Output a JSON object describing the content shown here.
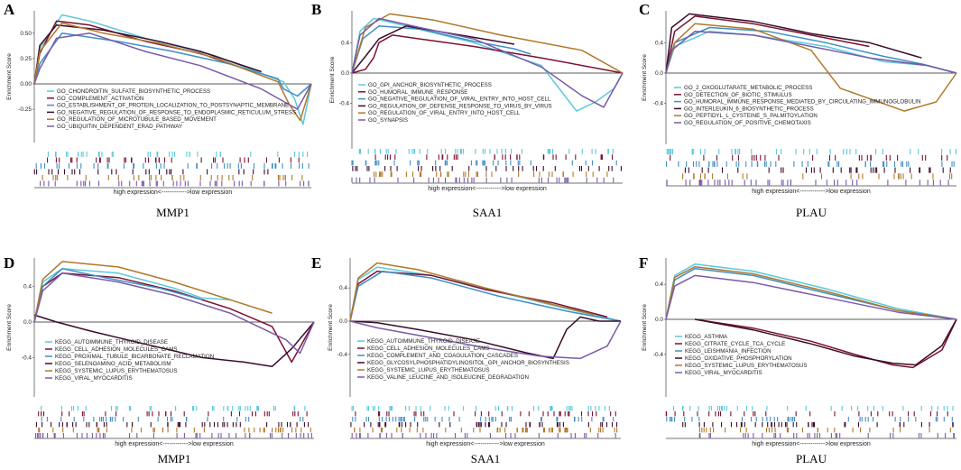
{
  "colors": [
    "#5bc8dc",
    "#7b1030",
    "#3f8fc6",
    "#3a0c2a",
    "#b07828",
    "#7a5aa8"
  ],
  "xlabel": "high expression<------------>low expression",
  "ylabel": "Enrichment Score",
  "chart_data": [
    {
      "type": "line",
      "panel": "A",
      "gene": "MMP1",
      "ylabel": "Enrichment Score",
      "xlabel": "high expression<------------>low expression",
      "ylim": [
        -0.45,
        0.72
      ],
      "yticks": [
        "0.50",
        "0.25",
        "0.00",
        "-0.25"
      ],
      "ytick_values": [
        0.5,
        0.25,
        0.0,
        -0.25
      ],
      "series": [
        {
          "name": "GO_CHONDROITIN_SULFATE_BIOSYNTHETIC_PROCESS",
          "x": [
            0,
            0.02,
            0.1,
            0.2,
            0.4,
            0.65,
            0.9,
            0.94,
            0.97,
            1.0
          ],
          "y": [
            0,
            0.35,
            0.68,
            0.62,
            0.45,
            0.28,
            0.02,
            -0.15,
            -0.4,
            0
          ]
        },
        {
          "name": "GO_COMPLEMENT_ACTIVATION",
          "x": [
            0,
            0.02,
            0.08,
            0.2,
            0.4,
            0.6,
            0.77
          ],
          "y": [
            0,
            0.3,
            0.62,
            0.58,
            0.42,
            0.3,
            0.14
          ]
        },
        {
          "name": "GO_ESTABLISHMENT_OF_PROTEIN_LOCALIZATION_TO_POSTSYNAPTIC_MEMBRANE",
          "x": [
            0,
            0.02,
            0.1,
            0.3,
            0.5,
            0.7,
            0.88,
            0.9,
            0.95,
            1.0
          ],
          "y": [
            0,
            0.2,
            0.5,
            0.42,
            0.32,
            0.2,
            0.05,
            -0.05,
            -0.12,
            0
          ]
        },
        {
          "name": "GO_NEGATIVE_REGULATION_OF_RESPONSE_TO_ENDOPLASMIC_RETICULUM_STRESS",
          "x": [
            0,
            0.02,
            0.08,
            0.25,
            0.45,
            0.6,
            0.82
          ],
          "y": [
            0,
            0.38,
            0.58,
            0.53,
            0.42,
            0.32,
            0.12
          ]
        },
        {
          "name": "GO_REGULATION_OF_MICROTUBULE_BASED_MOVEMENT",
          "x": [
            0,
            0.02,
            0.1,
            0.25,
            0.45,
            0.65,
            0.88,
            0.92,
            0.96,
            1.0
          ],
          "y": [
            0,
            0.32,
            0.6,
            0.5,
            0.4,
            0.26,
            0.02,
            -0.2,
            -0.36,
            0
          ]
        },
        {
          "name": "GO_UBIQUITIN_DEPENDENT_ERAD_PATHWAY",
          "x": [
            0,
            0.02,
            0.08,
            0.2,
            0.4,
            0.6,
            0.82,
            0.95,
            1.0
          ],
          "y": [
            0,
            0.15,
            0.45,
            0.5,
            0.32,
            0.18,
            -0.05,
            -0.25,
            0
          ]
        }
      ]
    },
    {
      "type": "line",
      "panel": "B",
      "gene": "SAA1",
      "ylabel": "Enrichment Score",
      "xlabel": "high expression<------------>low expression",
      "ylim": [
        -0.6,
        0.82
      ],
      "yticks": [
        "0.4",
        "0.0",
        "-0.4"
      ],
      "ytick_values": [
        0.4,
        0.0,
        -0.4
      ],
      "series": [
        {
          "name": "GO_GPI_ANCHOR_BIOSYNTHETIC_PROCESS",
          "x": [
            0,
            0.03,
            0.08,
            0.2,
            0.45,
            0.7,
            0.83,
            0.9,
            0.97,
            1.0
          ],
          "y": [
            0,
            0.55,
            0.72,
            0.62,
            0.4,
            0.1,
            -0.5,
            -0.38,
            -0.2,
            0
          ]
        },
        {
          "name": "GO_HUMORAL_IMMUNE_RESPONSE",
          "x": [
            0,
            0.05,
            0.08,
            0.1,
            0.15,
            0.25,
            0.45,
            0.7,
            1.0
          ],
          "y": [
            0,
            0.05,
            0.2,
            0.4,
            0.5,
            0.45,
            0.35,
            0.2,
            0
          ]
        },
        {
          "name": "GO_NEGATIVE_REGULATION_OF_VIRAL_ENTRY_INTO_HOST_CELL",
          "x": [
            0,
            0.04,
            0.1,
            0.25,
            0.45,
            0.6,
            0.66
          ],
          "y": [
            0,
            0.45,
            0.62,
            0.58,
            0.42,
            0.32,
            0.25
          ]
        },
        {
          "name": "GO_REGULATION_OF_DEFENSE_RESPONSE_TO_VIRUS_BY_VIRUS",
          "x": [
            0,
            0.05,
            0.1,
            0.2,
            0.4,
            0.6
          ],
          "y": [
            0,
            0.22,
            0.45,
            0.62,
            0.5,
            0.38
          ]
        },
        {
          "name": "GO_REGULATION_OF_VIRAL_ENTRY_INTO_HOST_CELL",
          "x": [
            0,
            0.05,
            0.14,
            0.3,
            0.55,
            0.85,
            1.0
          ],
          "y": [
            0,
            0.6,
            0.78,
            0.7,
            0.5,
            0.3,
            0
          ]
        },
        {
          "name": "GO_SYNAPSIS",
          "x": [
            0,
            0.03,
            0.1,
            0.25,
            0.45,
            0.7,
            0.85,
            0.93,
            1.0
          ],
          "y": [
            0,
            0.5,
            0.72,
            0.6,
            0.45,
            0.08,
            -0.3,
            -0.45,
            0
          ]
        }
      ]
    },
    {
      "type": "line",
      "panel": "C",
      "gene": "PLAU",
      "ylabel": "Enrichment Score",
      "xlabel": "high expression<------------>low expression",
      "ylim": [
        -0.68,
        0.82
      ],
      "yticks": [
        "0.4",
        "0.0",
        "-0.4"
      ],
      "ytick_values": [
        0.4,
        0.0,
        -0.4
      ],
      "series": [
        {
          "name": "GO_2_OXOGLUTARATE_METABOLIC_PROCESS",
          "x": [
            0,
            0.03,
            0.15,
            0.3,
            0.55,
            0.75,
            0.9,
            1.0
          ],
          "y": [
            0,
            0.35,
            0.55,
            0.5,
            0.35,
            0.15,
            0.1,
            0
          ]
        },
        {
          "name": "GO_DETECTION_OF_BIOTIC_STIMULUS",
          "x": [
            0,
            0.03,
            0.1,
            0.3,
            0.5,
            0.7
          ],
          "y": [
            0,
            0.55,
            0.75,
            0.65,
            0.5,
            0.35
          ]
        },
        {
          "name": "GO_HUMORAL_IMMUNE_RESPONSE_MEDIATED_BY_CIRCULATING_IMMUNOGLOBULIN",
          "x": [
            0,
            0.03,
            0.15,
            0.35,
            0.55,
            0.75,
            0.88,
            1.0
          ],
          "y": [
            0,
            0.4,
            0.6,
            0.55,
            0.4,
            0.22,
            0.12,
            0
          ]
        },
        {
          "name": "GO_INTERLEUKIN_6_BIOSYNTHETIC_PROCESS",
          "x": [
            0,
            0.02,
            0.08,
            0.3,
            0.5,
            0.7,
            0.88
          ],
          "y": [
            0,
            0.6,
            0.78,
            0.68,
            0.52,
            0.4,
            0.2
          ]
        },
        {
          "name": "GO_PEPTIDYL_L_CYSTEINE_S_PALMITOYLATION",
          "x": [
            0,
            0.03,
            0.1,
            0.3,
            0.5,
            0.6,
            0.82,
            0.93,
            1.0
          ],
          "y": [
            0,
            0.4,
            0.65,
            0.58,
            0.3,
            -0.2,
            -0.5,
            -0.38,
            0
          ]
        },
        {
          "name": "GO_REGULATION_OF_POSITIVE_CHEMOTAXIS",
          "x": [
            0,
            0.02,
            0.1,
            0.3,
            0.5,
            0.7,
            0.9,
            1.0
          ],
          "y": [
            0,
            0.3,
            0.55,
            0.5,
            0.35,
            0.2,
            0.1,
            0
          ]
        }
      ]
    },
    {
      "type": "line",
      "panel": "D",
      "gene": "MMP1",
      "ylabel": "Enrichment Score",
      "xlabel": "high expression<------------>low expression",
      "ylim": [
        -0.62,
        0.72
      ],
      "yticks": [
        "0.4",
        "0.0",
        "-0.4"
      ],
      "ytick_values": [
        0.4,
        0.0,
        -0.4
      ],
      "series": [
        {
          "name": "KEGG_AUTOIMMUNE_THYROID_DISEASE",
          "x": [
            0,
            0.03,
            0.1,
            0.3,
            0.5,
            0.6,
            0.7
          ],
          "y": [
            0,
            0.45,
            0.6,
            0.55,
            0.38,
            0.27,
            0.25
          ]
        },
        {
          "name": "KEGG_CELL_ADHESION_MOLECULES_CAMS",
          "x": [
            0,
            0.03,
            0.1,
            0.3,
            0.5,
            0.7,
            0.85,
            0.92,
            1.0
          ],
          "y": [
            0,
            0.4,
            0.55,
            0.5,
            0.35,
            0.15,
            -0.05,
            -0.45,
            0
          ]
        },
        {
          "name": "KEGG_PROXIMAL_TUBULE_BICARBONATE_RECLAMATION",
          "x": [
            0,
            0.03,
            0.1,
            0.25,
            0.45,
            0.6
          ],
          "y": [
            0,
            0.4,
            0.6,
            0.5,
            0.38,
            0.25
          ]
        },
        {
          "name": "KEGG_SELENOAMINO_ACID_METABOLISM",
          "x": [
            0,
            0.08,
            0.2,
            0.4,
            0.6,
            0.75,
            0.85,
            0.92,
            1.0
          ],
          "y": [
            0.08,
            0.0,
            -0.1,
            -0.25,
            -0.4,
            -0.45,
            -0.5,
            -0.3,
            0
          ]
        },
        {
          "name": "KEGG_SYSTEMIC_LUPUS_ERYTHEMATOSUS",
          "x": [
            0,
            0.03,
            0.1,
            0.3,
            0.5,
            0.7,
            0.85
          ],
          "y": [
            0,
            0.48,
            0.68,
            0.62,
            0.45,
            0.25,
            0.1
          ]
        },
        {
          "name": "KEGG_VIRAL_MYOCARDITIS",
          "x": [
            0,
            0.03,
            0.1,
            0.3,
            0.5,
            0.7,
            0.9,
            0.95,
            1.0
          ],
          "y": [
            0,
            0.35,
            0.55,
            0.45,
            0.3,
            0.1,
            -0.2,
            -0.35,
            0
          ]
        }
      ]
    },
    {
      "type": "line",
      "panel": "E",
      "gene": "SAA1",
      "ylabel": "Enrichment Score",
      "xlabel": "high expression<------------>low expression",
      "ylim": [
        -0.58,
        0.76
      ],
      "yticks": [
        "0.4",
        "0.0",
        "-0.4"
      ],
      "ytick_values": [
        0.4,
        0.0,
        -0.4
      ],
      "series": [
        {
          "name": "KEGG_AUTOIMMUNE_THYROID_DISEASE",
          "x": [
            0,
            0.03,
            0.1,
            0.3,
            0.55,
            0.8,
            1.0
          ],
          "y": [
            0,
            0.5,
            0.65,
            0.55,
            0.35,
            0.15,
            0
          ]
        },
        {
          "name": "KEGG_CELL_ADHESION_MOLECULES_CAMS",
          "x": [
            0,
            0.03,
            0.1,
            0.3,
            0.5,
            0.75,
            0.95
          ],
          "y": [
            0,
            0.45,
            0.6,
            0.55,
            0.38,
            0.22,
            0.05
          ]
        },
        {
          "name": "KEGG_COMPLEMENT_AND_COAGULATION_CASCADES",
          "x": [
            0,
            0.03,
            0.12,
            0.3,
            0.55,
            0.8,
            1.0
          ],
          "y": [
            0,
            0.42,
            0.6,
            0.52,
            0.3,
            0.12,
            0
          ]
        },
        {
          "name": "KEGG_GLYCOSYLPHOSPHATIDYLINOSITOL_GPI_ANCHOR_BIOSYNTHESIS",
          "x": [
            0,
            0.1,
            0.25,
            0.45,
            0.65,
            0.75,
            0.8,
            0.85,
            0.92,
            1.0
          ],
          "y": [
            0,
            -0.02,
            -0.1,
            -0.22,
            -0.38,
            -0.45,
            -0.1,
            0.05,
            0.0,
            0
          ]
        },
        {
          "name": "KEGG_SYSTEMIC_LUPUS_ERYTHEMATOSUS",
          "x": [
            0,
            0.03,
            0.1,
            0.25,
            0.5,
            0.75,
            0.9
          ],
          "y": [
            0,
            0.52,
            0.7,
            0.62,
            0.4,
            0.2,
            0.08
          ]
        },
        {
          "name": "KEGG_VALINE_LEUCINE_AND_ISOLEUCINE_DEGRADATION",
          "x": [
            0,
            0.1,
            0.3,
            0.5,
            0.7,
            0.85,
            0.95,
            1.0
          ],
          "y": [
            0,
            -0.08,
            -0.2,
            -0.32,
            -0.42,
            -0.45,
            -0.3,
            0
          ]
        }
      ]
    },
    {
      "type": "line",
      "panel": "F",
      "gene": "PLAU",
      "ylabel": "Enrichment Score",
      "xlabel": "high expression<------------>low expression",
      "ylim": [
        -0.6,
        0.7
      ],
      "yticks": [
        "0.4",
        "0.0",
        "-0.4"
      ],
      "ytick_values": [
        0.4,
        0.0,
        -0.4
      ],
      "series": [
        {
          "name": "KEGG_ASTHMA",
          "x": [
            0,
            0.03,
            0.1,
            0.3,
            0.55,
            0.8,
            1.0
          ],
          "y": [
            0,
            0.5,
            0.63,
            0.55,
            0.35,
            0.12,
            0
          ]
        },
        {
          "name": "KEGG_CITRATE_CYCLE_TCA_CYCLE",
          "x": [
            0.1,
            0.3,
            0.5,
            0.65,
            0.78,
            0.85,
            0.95,
            1.0
          ],
          "y": [
            0,
            -0.1,
            -0.25,
            -0.4,
            -0.52,
            -0.55,
            -0.35,
            0
          ]
        },
        {
          "name": "KEGG_LEISHMANIA_INFECTION",
          "x": [
            0,
            0.03,
            0.1,
            0.3,
            0.55,
            0.8,
            1.0
          ],
          "y": [
            0,
            0.45,
            0.58,
            0.5,
            0.3,
            0.1,
            0
          ]
        },
        {
          "name": "KEGG_OXIDATIVE_PHOSPHORYLATION",
          "x": [
            0.1,
            0.3,
            0.5,
            0.65,
            0.78,
            0.86,
            0.95,
            1.0
          ],
          "y": [
            0,
            -0.12,
            -0.28,
            -0.42,
            -0.5,
            -0.52,
            -0.3,
            0
          ]
        },
        {
          "name": "KEGG_SYSTEMIC_LUPUS_ERYTHEMATOSUS",
          "x": [
            0,
            0.03,
            0.1,
            0.3,
            0.55,
            0.8,
            1.0
          ],
          "y": [
            0,
            0.48,
            0.6,
            0.52,
            0.32,
            0.1,
            0
          ]
        },
        {
          "name": "KEGG_VIRAL_MYOCARDITIS",
          "x": [
            0,
            0.03,
            0.1,
            0.3,
            0.55,
            0.8,
            1.0
          ],
          "y": [
            0,
            0.38,
            0.5,
            0.42,
            0.25,
            0.08,
            0
          ]
        }
      ]
    }
  ]
}
